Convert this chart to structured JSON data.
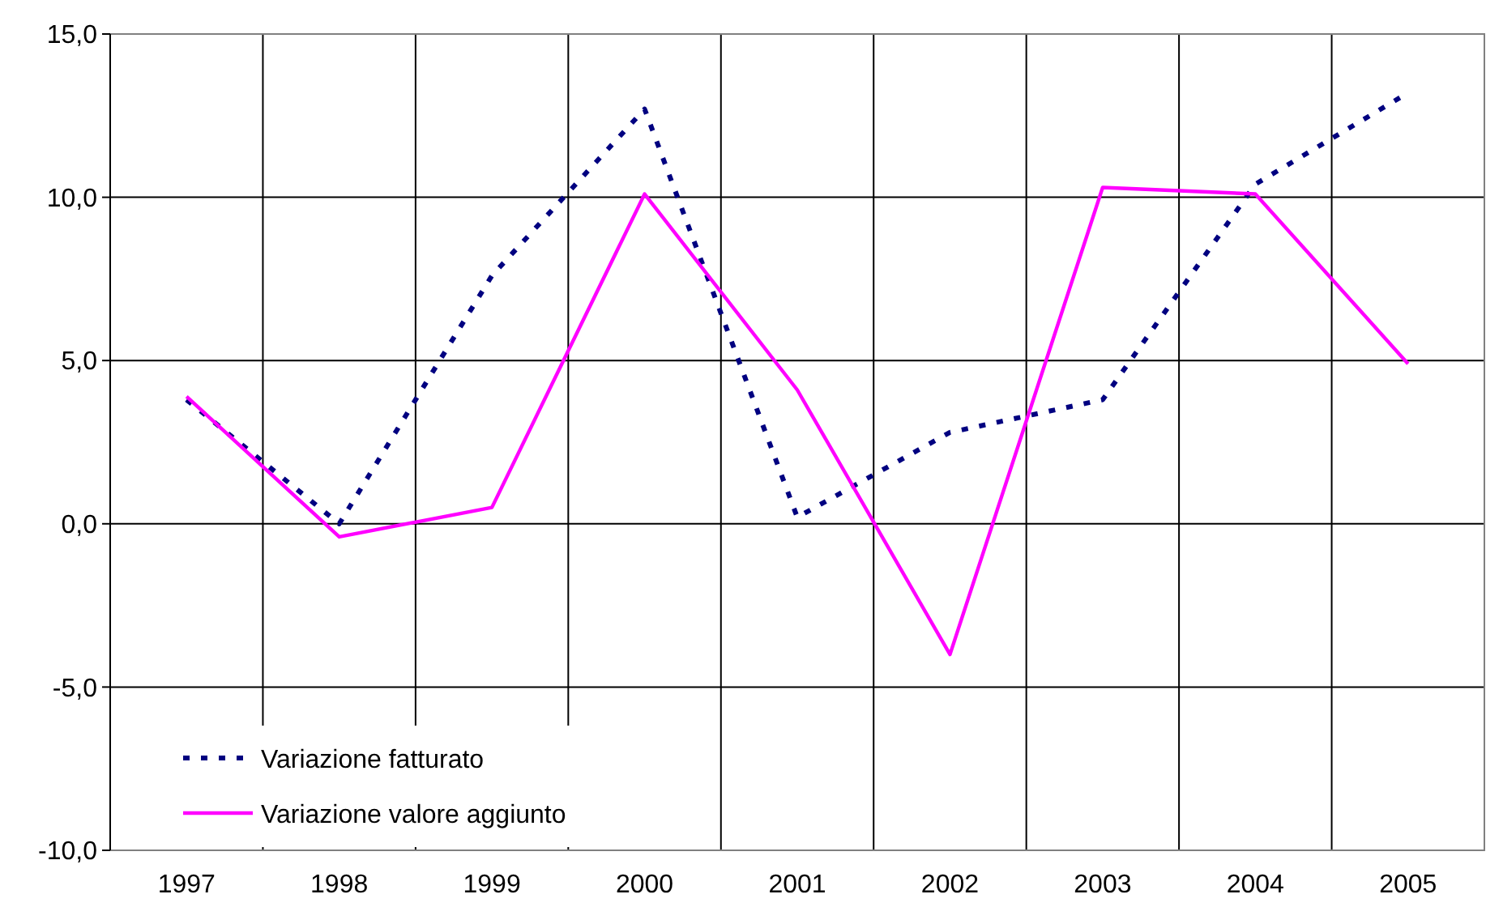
{
  "chart_data": {
    "type": "line",
    "categories": [
      "1997",
      "1998",
      "1999",
      "2000",
      "2001",
      "2002",
      "2003",
      "2004",
      "2005"
    ],
    "series": [
      {
        "name": "Variazione fatturato",
        "color": "#000080",
        "line_style": "dashed",
        "values": [
          3.8,
          0.0,
          7.6,
          12.7,
          0.2,
          2.8,
          3.8,
          10.4,
          13.2
        ]
      },
      {
        "name": "Variazione valore aggiunto",
        "color": "#ff00ff",
        "line_style": "solid",
        "values": [
          3.9,
          -0.4,
          0.5,
          10.1,
          4.1,
          -4.0,
          10.3,
          10.1,
          4.9
        ]
      }
    ],
    "ylim": [
      -10,
      15
    ],
    "yticks": [
      {
        "value": -10,
        "label": "-10,0"
      },
      {
        "value": -5,
        "label": "-5,0"
      },
      {
        "value": 0,
        "label": "0,0"
      },
      {
        "value": 5,
        "label": "5,0"
      },
      {
        "value": 10,
        "label": "10,0"
      },
      {
        "value": 15,
        "label": "15,0"
      }
    ],
    "grid": true,
    "legend": "bottom left",
    "marker": "none"
  }
}
